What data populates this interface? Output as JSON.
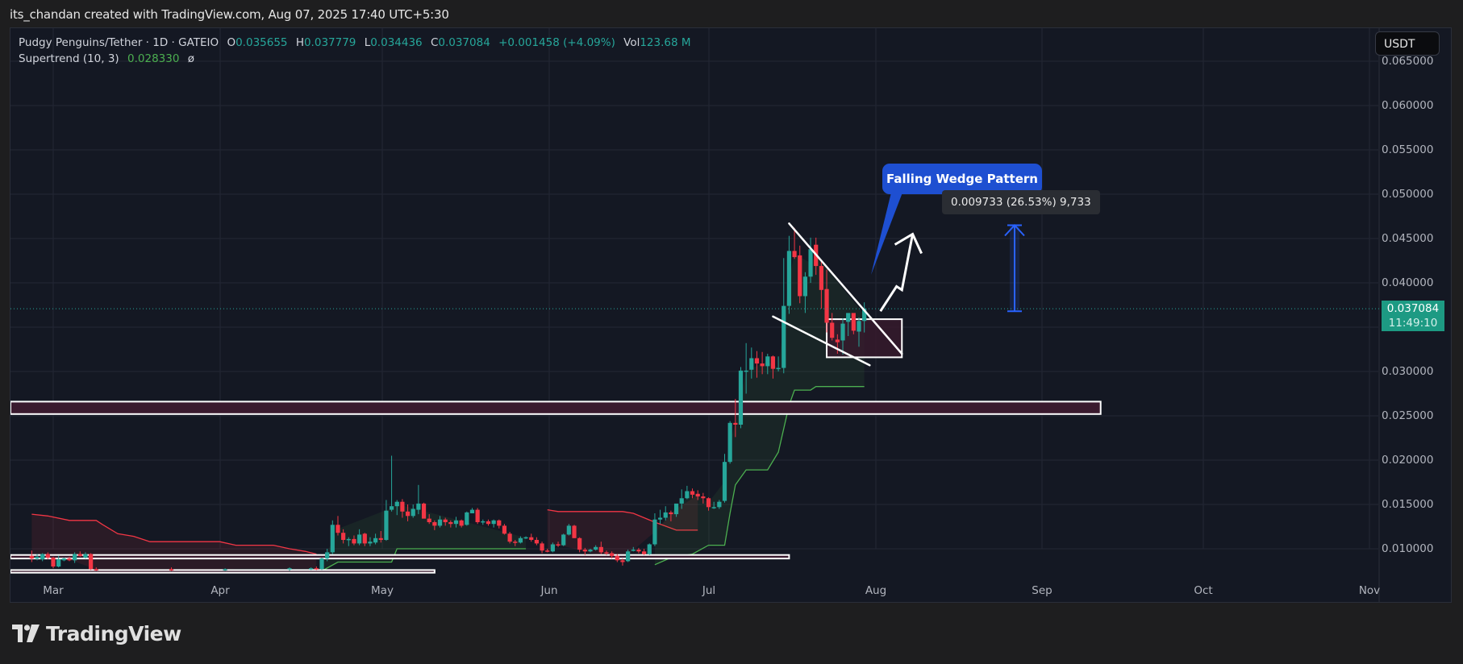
{
  "header": {
    "credit": "its_chandan created with TradingView.com, Aug 07, 2025 17:40 UTC+5:30"
  },
  "legend": {
    "symbol": "Pudgy Penguins/Tether · 1D · GATEIO",
    "open_label": "O",
    "open": "0.035655",
    "high_label": "H",
    "high": "0.037779",
    "low_label": "L",
    "low": "0.034436",
    "close_label": "C",
    "close": "0.037084",
    "change": "+0.001458 (+4.09%)",
    "vol_label": "Vol",
    "vol": "123.68 M",
    "indicator": "Supertrend (10, 3)",
    "indicator_value": "0.028330",
    "indicator_icon": "ø"
  },
  "currency_button": "USDT",
  "price_label": {
    "price": "0.037084",
    "countdown": "11:49:10"
  },
  "annotations": {
    "callout": "Falling Wedge Pattern",
    "measure": "0.009733 (26.53%) 9,733"
  },
  "footer": {
    "brand": "TradingView"
  },
  "colors": {
    "up": "#26a69a",
    "down": "#f23645",
    "background": "#141823",
    "supertrend_up": "#4caf50",
    "supertrend_down": "#f23645",
    "zone_fill": "#3a1a2e",
    "callout": "#1e4fd1",
    "price_label": "#1d9a83"
  },
  "chart_data": {
    "type": "candlestick",
    "title": "Pudgy Penguins/Tether · 1D · GATEIO",
    "xlabel": "",
    "ylabel": "USDT",
    "x_ticks": [
      "Mar",
      "Apr",
      "May",
      "Jun",
      "Jul",
      "Aug",
      "Sep",
      "Oct",
      "Nov"
    ],
    "y_ticks": [
      "0.010000",
      "0.015000",
      "0.020000",
      "0.025000",
      "0.030000",
      "0.035000",
      "0.040000",
      "0.045000",
      "0.050000",
      "0.055000",
      "0.060000",
      "0.065000"
    ],
    "ylim": [
      0.0075,
      0.066
    ],
    "grid": true,
    "last_price": 0.037084,
    "candles_note": "approximate daily OHLC read from chart [day_index_from_Feb25, open, high, low, close]",
    "candles": [
      [
        0,
        0.0092,
        0.0098,
        0.0085,
        0.0089
      ],
      [
        1,
        0.0089,
        0.0094,
        0.0087,
        0.0091
      ],
      [
        2,
        0.0088,
        0.0095,
        0.0086,
        0.0094
      ],
      [
        3,
        0.0094,
        0.0096,
        0.0088,
        0.009
      ],
      [
        4,
        0.009,
        0.0091,
        0.0078,
        0.008
      ],
      [
        5,
        0.008,
        0.0092,
        0.0079,
        0.0088
      ],
      [
        6,
        0.0087,
        0.009,
        0.0086,
        0.0089
      ],
      [
        7,
        0.0089,
        0.0091,
        0.0086,
        0.0087
      ],
      [
        8,
        0.0087,
        0.0096,
        0.0084,
        0.0094
      ],
      [
        9,
        0.0094,
        0.0097,
        0.0091,
        0.0092
      ],
      [
        10,
        0.009,
        0.0096,
        0.0089,
        0.0094
      ],
      [
        11,
        0.0094,
        0.0095,
        0.0076,
        0.0077
      ],
      [
        12,
        0.0077,
        0.0079,
        0.0075,
        0.0076
      ],
      [
        26,
        0.0077,
        0.0079,
        0.0075,
        0.0076
      ],
      [
        36,
        0.0076,
        0.0078,
        0.0075,
        0.0077
      ],
      [
        48,
        0.0077,
        0.0079,
        0.0075,
        0.0078
      ],
      [
        52,
        0.0077,
        0.0079,
        0.0076,
        0.0078
      ],
      [
        53,
        0.0078,
        0.008,
        0.0076,
        0.0077
      ],
      [
        54,
        0.0077,
        0.009,
        0.0076,
        0.0089
      ],
      [
        55,
        0.0089,
        0.01,
        0.0086,
        0.0096
      ],
      [
        56,
        0.0096,
        0.0132,
        0.0094,
        0.0127
      ],
      [
        57,
        0.0127,
        0.0137,
        0.0115,
        0.0118
      ],
      [
        58,
        0.0118,
        0.0122,
        0.0106,
        0.011
      ],
      [
        59,
        0.011,
        0.0113,
        0.0103,
        0.0111
      ],
      [
        60,
        0.0111,
        0.0115,
        0.0104,
        0.0106
      ],
      [
        61,
        0.0106,
        0.0122,
        0.0104,
        0.0116
      ],
      [
        62,
        0.0117,
        0.0118,
        0.0103,
        0.0106
      ],
      [
        63,
        0.0106,
        0.0113,
        0.0103,
        0.0108
      ],
      [
        64,
        0.0107,
        0.0117,
        0.0105,
        0.0112
      ],
      [
        65,
        0.0112,
        0.012,
        0.0107,
        0.011
      ],
      [
        66,
        0.011,
        0.0155,
        0.0109,
        0.0143
      ],
      [
        67,
        0.0144,
        0.0205,
        0.0142,
        0.0148
      ],
      [
        68,
        0.0148,
        0.0155,
        0.0138,
        0.0153
      ],
      [
        69,
        0.0153,
        0.0156,
        0.0135,
        0.0142
      ],
      [
        70,
        0.0142,
        0.015,
        0.0131,
        0.0137
      ],
      [
        71,
        0.0137,
        0.015,
        0.0135,
        0.0145
      ],
      [
        72,
        0.0144,
        0.0172,
        0.0139,
        0.0151
      ],
      [
        73,
        0.0151,
        0.0152,
        0.0137,
        0.0134
      ],
      [
        74,
        0.0134,
        0.0139,
        0.0128,
        0.013
      ],
      [
        75,
        0.013,
        0.0132,
        0.0121,
        0.0126
      ],
      [
        76,
        0.0126,
        0.0137,
        0.0124,
        0.0133
      ],
      [
        77,
        0.0133,
        0.0135,
        0.0126,
        0.013
      ],
      [
        78,
        0.013,
        0.0132,
        0.0124,
        0.0128
      ],
      [
        79,
        0.0128,
        0.0136,
        0.0124,
        0.0132
      ],
      [
        80,
        0.0132,
        0.0133,
        0.0124,
        0.0126
      ],
      [
        81,
        0.0127,
        0.0142,
        0.0126,
        0.0141
      ],
      [
        82,
        0.014,
        0.0146,
        0.014,
        0.0144
      ],
      [
        83,
        0.0144,
        0.0146,
        0.0128,
        0.013
      ],
      [
        84,
        0.013,
        0.0133,
        0.0127,
        0.0131
      ],
      [
        85,
        0.0131,
        0.0133,
        0.0126,
        0.0128
      ],
      [
        86,
        0.0128,
        0.0133,
        0.0124,
        0.0132
      ],
      [
        87,
        0.0132,
        0.0133,
        0.0123,
        0.0126
      ],
      [
        88,
        0.0126,
        0.0128,
        0.0116,
        0.0117
      ],
      [
        89,
        0.0117,
        0.0119,
        0.0106,
        0.0108
      ],
      [
        90,
        0.0108,
        0.011,
        0.0103,
        0.0107
      ],
      [
        91,
        0.0107,
        0.0114,
        0.0106,
        0.0112
      ],
      [
        92,
        0.0112,
        0.0114,
        0.0111,
        0.0113
      ],
      [
        93,
        0.0113,
        0.0117,
        0.0108,
        0.011
      ],
      [
        94,
        0.011,
        0.0113,
        0.0104,
        0.0106
      ],
      [
        95,
        0.0106,
        0.0108,
        0.0095,
        0.0098
      ],
      [
        96,
        0.0098,
        0.01,
        0.0096,
        0.0097
      ],
      [
        97,
        0.0097,
        0.0107,
        0.0096,
        0.0105
      ],
      [
        98,
        0.0105,
        0.0108,
        0.0102,
        0.0104
      ],
      [
        99,
        0.0104,
        0.0117,
        0.0103,
        0.0116
      ],
      [
        100,
        0.0116,
        0.0128,
        0.0115,
        0.0126
      ],
      [
        101,
        0.0126,
        0.0127,
        0.0112,
        0.0112
      ],
      [
        102,
        0.0112,
        0.0113,
        0.0096,
        0.0099
      ],
      [
        103,
        0.0099,
        0.0101,
        0.0093,
        0.0097
      ],
      [
        104,
        0.0097,
        0.01,
        0.0096,
        0.0099
      ],
      [
        105,
        0.0099,
        0.0104,
        0.0098,
        0.0102
      ],
      [
        106,
        0.0102,
        0.0108,
        0.0094,
        0.0096
      ],
      [
        107,
        0.0096,
        0.0098,
        0.0093,
        0.0095
      ],
      [
        108,
        0.0095,
        0.0097,
        0.0089,
        0.0092
      ],
      [
        109,
        0.0092,
        0.0094,
        0.0085,
        0.0087
      ],
      [
        110,
        0.0087,
        0.0089,
        0.0081,
        0.0085
      ],
      [
        111,
        0.0086,
        0.0099,
        0.0085,
        0.0097
      ],
      [
        112,
        0.0098,
        0.0102,
        0.0097,
        0.0099
      ],
      [
        113,
        0.0099,
        0.0101,
        0.0095,
        0.0097
      ],
      [
        114,
        0.0097,
        0.01,
        0.0093,
        0.0094
      ],
      [
        115,
        0.0094,
        0.0106,
        0.0093,
        0.0105
      ],
      [
        116,
        0.0105,
        0.014,
        0.0103,
        0.0133
      ],
      [
        117,
        0.0133,
        0.0144,
        0.0128,
        0.0135
      ],
      [
        118,
        0.0135,
        0.0148,
        0.0132,
        0.0141
      ],
      [
        119,
        0.0141,
        0.0143,
        0.0131,
        0.0139
      ],
      [
        120,
        0.0139,
        0.015,
        0.0136,
        0.0151
      ],
      [
        121,
        0.0151,
        0.0167,
        0.0145,
        0.0157
      ],
      [
        122,
        0.0157,
        0.0171,
        0.0156,
        0.0165
      ],
      [
        123,
        0.0165,
        0.0168,
        0.0157,
        0.0161
      ],
      [
        124,
        0.0162,
        0.0166,
        0.0155,
        0.0159
      ],
      [
        125,
        0.0159,
        0.0163,
        0.0151,
        0.0157
      ],
      [
        126,
        0.0157,
        0.0158,
        0.0143,
        0.0147
      ],
      [
        127,
        0.0147,
        0.0153,
        0.0145,
        0.0147
      ],
      [
        128,
        0.0147,
        0.0155,
        0.0145,
        0.0153
      ],
      [
        129,
        0.0154,
        0.0207,
        0.0152,
        0.0198
      ],
      [
        130,
        0.0198,
        0.0244,
        0.0196,
        0.0242
      ],
      [
        131,
        0.0242,
        0.0269,
        0.0226,
        0.024
      ],
      [
        132,
        0.024,
        0.0305,
        0.0236,
        0.0301
      ],
      [
        133,
        0.0301,
        0.0332,
        0.0275,
        0.0301
      ],
      [
        134,
        0.0302,
        0.0327,
        0.0292,
        0.0315
      ],
      [
        135,
        0.0315,
        0.0323,
        0.0293,
        0.0309
      ],
      [
        136,
        0.0309,
        0.0322,
        0.0297,
        0.0306
      ],
      [
        137,
        0.0306,
        0.032,
        0.0297,
        0.0317
      ],
      [
        138,
        0.0317,
        0.0318,
        0.0292,
        0.0303
      ],
      [
        139,
        0.0304,
        0.0317,
        0.03,
        0.0304
      ],
      [
        140,
        0.0304,
        0.0428,
        0.0298,
        0.0374
      ],
      [
        141,
        0.0374,
        0.0453,
        0.0365,
        0.0436
      ],
      [
        142,
        0.0436,
        0.0462,
        0.0427,
        0.0429
      ],
      [
        143,
        0.0431,
        0.0442,
        0.0377,
        0.0385
      ],
      [
        144,
        0.0385,
        0.0412,
        0.0366,
        0.0407
      ],
      [
        145,
        0.0407,
        0.0451,
        0.04,
        0.0438
      ],
      [
        146,
        0.0443,
        0.0451,
        0.0409,
        0.0419
      ],
      [
        147,
        0.0419,
        0.0426,
        0.0371,
        0.0392
      ],
      [
        148,
        0.0393,
        0.0415,
        0.0344,
        0.0355
      ],
      [
        149,
        0.0355,
        0.0366,
        0.0335,
        0.0338
      ],
      [
        150,
        0.0336,
        0.0342,
        0.032,
        0.0333
      ],
      [
        151,
        0.0335,
        0.036,
        0.0319,
        0.0354
      ],
      [
        152,
        0.0356,
        0.036,
        0.034,
        0.0366
      ],
      [
        153,
        0.0366,
        0.0362,
        0.0342,
        0.0346
      ],
      [
        154,
        0.0345,
        0.0361,
        0.0328,
        0.0357
      ],
      [
        155,
        0.0357,
        0.0378,
        0.0344,
        0.0371
      ]
    ],
    "supertrend_note": "approximate [day_index, value, direction]",
    "supertrend": [
      [
        0,
        0.0139,
        "down"
      ],
      [
        3,
        0.0137,
        "down"
      ],
      [
        7,
        0.0132,
        "down"
      ],
      [
        12,
        0.0132,
        "down"
      ],
      [
        13,
        0.0128,
        "down"
      ],
      [
        16,
        0.0117,
        "down"
      ],
      [
        19,
        0.0114,
        "down"
      ],
      [
        22,
        0.0108,
        "down"
      ],
      [
        35,
        0.0108,
        "down"
      ],
      [
        38,
        0.0104,
        "down"
      ],
      [
        45,
        0.0104,
        "down"
      ],
      [
        48,
        0.01,
        "down"
      ],
      [
        51,
        0.0097,
        "down"
      ],
      [
        53,
        0.0094,
        "down"
      ],
      [
        54,
        0.0075,
        "up"
      ],
      [
        57,
        0.0085,
        "up"
      ],
      [
        67,
        0.0085,
        "up"
      ],
      [
        68,
        0.01,
        "up"
      ],
      [
        92,
        0.01,
        "up"
      ],
      [
        96,
        0.0144,
        "down"
      ],
      [
        98,
        0.0142,
        "down"
      ],
      [
        110,
        0.0142,
        "down"
      ],
      [
        112,
        0.014,
        "down"
      ],
      [
        116,
        0.013,
        "down"
      ],
      [
        120,
        0.0121,
        "down"
      ],
      [
        124,
        0.0121,
        "down"
      ],
      [
        116,
        0.0082,
        "up"
      ],
      [
        119,
        0.009,
        "up"
      ],
      [
        123,
        0.0094,
        "up"
      ],
      [
        126,
        0.0104,
        "up"
      ],
      [
        129,
        0.0104,
        "up"
      ],
      [
        130,
        0.014,
        "up"
      ],
      [
        131,
        0.0172,
        "up"
      ],
      [
        133,
        0.0189,
        "up"
      ],
      [
        137,
        0.0189,
        "up"
      ],
      [
        139,
        0.0209,
        "up"
      ],
      [
        141,
        0.0262,
        "up"
      ],
      [
        142,
        0.0279,
        "up"
      ],
      [
        145,
        0.0279,
        "up"
      ],
      [
        146,
        0.0283,
        "up"
      ],
      [
        155,
        0.0283,
        "up"
      ]
    ],
    "zones": [
      {
        "name": "resistance-zone",
        "top": 0.0266,
        "bottom": 0.0252,
        "x_start_day": -1,
        "x_end_day": 199
      },
      {
        "name": "support-zone-1",
        "top": 0.0093,
        "bottom": 0.0089,
        "x_start_day": -1,
        "x_end_day": 141
      },
      {
        "name": "support-zone-2",
        "top": 0.0076,
        "bottom": 0.0073,
        "x_start_day": -1,
        "x_end_day": 75
      },
      {
        "name": "consolidation-box",
        "top": 0.0359,
        "bottom": 0.0316,
        "x_start_day": 148,
        "x_end_day": 162
      }
    ],
    "trendlines": [
      {
        "name": "wedge-upper",
        "from": [
          141,
          0.0467
        ],
        "to": [
          162,
          0.032
        ]
      },
      {
        "name": "wedge-lower",
        "from": [
          138,
          0.0362
        ],
        "to": [
          156,
          0.0307
        ]
      }
    ],
    "projection": {
      "name": "breakout-arrow",
      "points": [
        [
          158,
          0.0368
        ],
        [
          161,
          0.0396
        ],
        [
          162,
          0.0392
        ],
        [
          164,
          0.0455
        ]
      ]
    },
    "measure": {
      "from": 0.0368,
      "to": 0.0465,
      "delta": 0.009733,
      "percent": 26.53,
      "ticks": 9733
    }
  }
}
